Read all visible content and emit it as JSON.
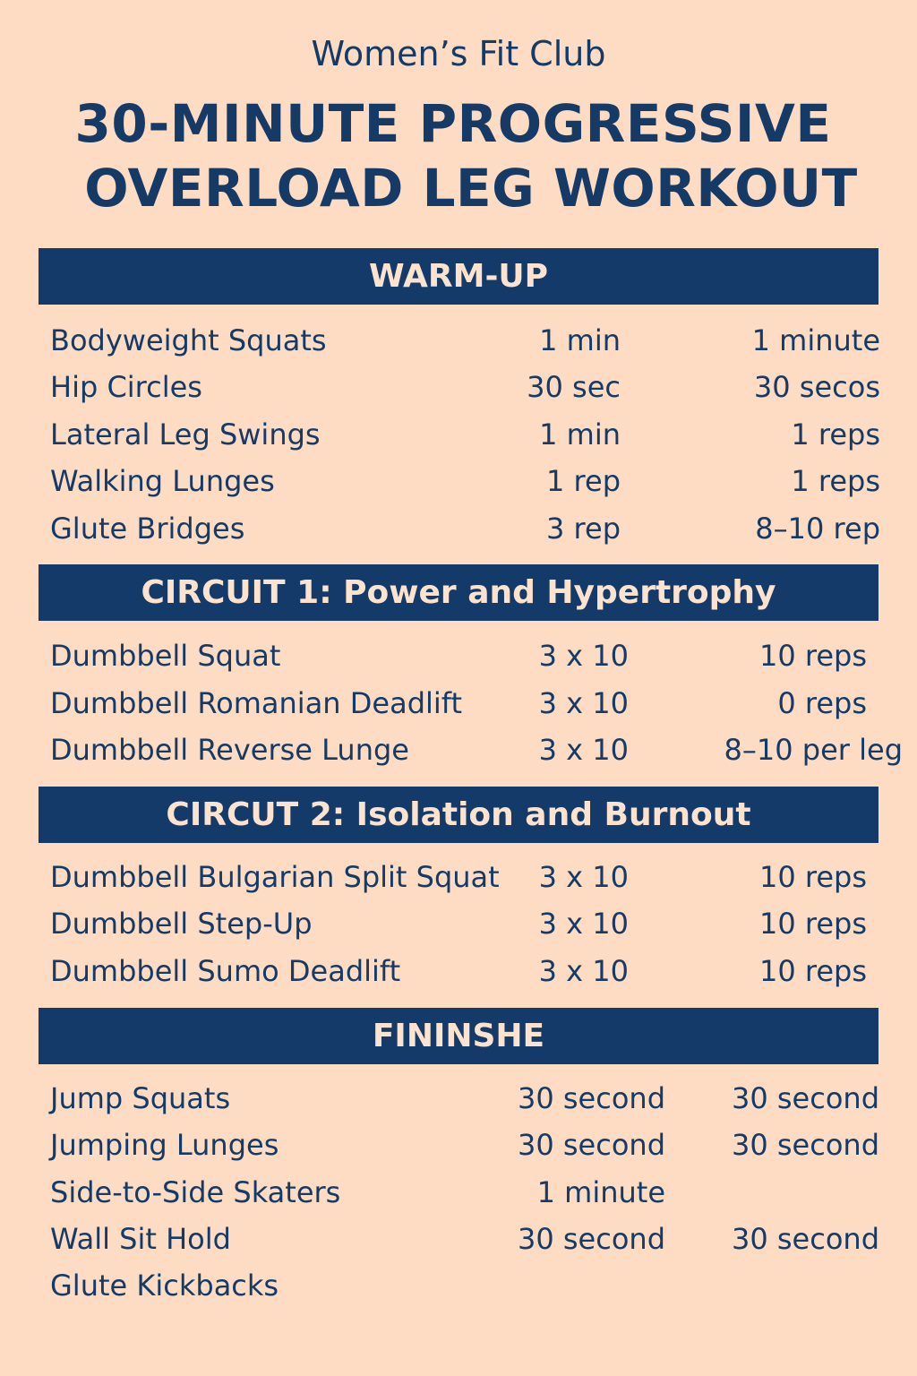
{
  "club_name": "Women’s Fit Club",
  "title_line1": "30-MINUTE PROGRESSIVE",
  "title_line2": "OVERLOAD LEG WORKOUT",
  "colors": {
    "background": "#fddcc3",
    "navy": "#133a69",
    "header_text": "#fde3cd"
  },
  "sections": [
    {
      "title": "WARM-UP",
      "rows": [
        [
          "Bodyweight Squats",
          "1 min",
          "1 minute"
        ],
        [
          "Hip Circles",
          "30 sec",
          "30 secos"
        ],
        [
          "Lateral Leg Swings",
          "1 min",
          "1 reps"
        ],
        [
          "Walking Lunges",
          "1 rep",
          "1 reps"
        ],
        [
          "Glute Bridges",
          "3 rep",
          "8–10 rep"
        ]
      ]
    },
    {
      "title": "CIRCUIT 1: Power and Hypertrophy",
      "rows": [
        [
          "Dumbbell Squat",
          "3 x 10",
          "10 reps"
        ],
        [
          "Dumbbell Romanian Deadlift",
          "3 x 10",
          "0 reps"
        ],
        [
          "Dumbbell Reverse Lunge",
          "3 x 10",
          "8–10 per leg"
        ]
      ]
    },
    {
      "title": "CIRCUT 2: Isolation and Burnout",
      "rows": [
        [
          "Dumbbell Bulgarian Split Squat",
          "3 x 10",
          "10 reps"
        ],
        [
          "Dumbbell Step-Up",
          "3 x 10",
          "10 reps"
        ],
        [
          "Dumbbell Sumo Deadlift",
          "3 x 10",
          "10 reps"
        ]
      ]
    },
    {
      "title": "FININSHE",
      "rows": [
        [
          "Jump Squats",
          "30 second",
          "30 second"
        ],
        [
          "Jumping Lunges",
          "30 second",
          "30 second"
        ],
        [
          "Side-to-Side Skaters",
          "1 minute",
          ""
        ],
        [
          "Wall Sit Hold",
          "30 second",
          "30 second"
        ],
        [
          "Glute Kickbacks",
          "",
          ""
        ]
      ]
    }
  ]
}
